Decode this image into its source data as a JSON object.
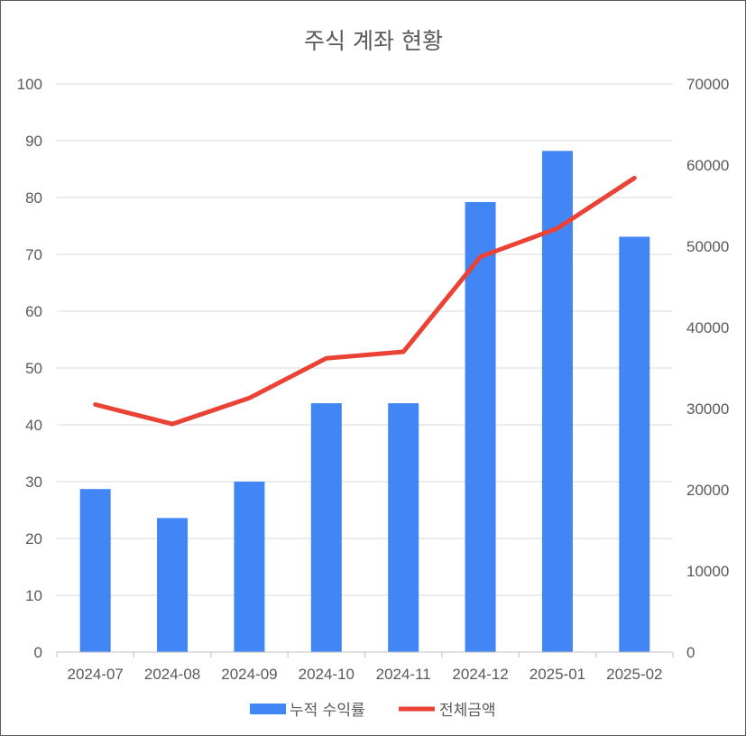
{
  "chart_data": {
    "type": "bar",
    "title": "주식 계좌 현황",
    "categories": [
      "2024-07",
      "2024-08",
      "2024-09",
      "2024-10",
      "2024-11",
      "2024-12",
      "2025-01",
      "2025-02"
    ],
    "series": [
      {
        "name": "누적 수익률",
        "type": "bar",
        "axis": "left",
        "color": "#4285F4",
        "values": [
          28.7,
          23.6,
          30.0,
          43.8,
          43.8,
          79.2,
          88.2,
          73.1
        ]
      },
      {
        "name": "전체금액",
        "type": "line",
        "axis": "right",
        "color": "#EA4335",
        "values": [
          30500,
          28100,
          31300,
          36200,
          37000,
          48700,
          52200,
          58400
        ]
      }
    ],
    "y_left": {
      "min": 0,
      "max": 100,
      "step": 10,
      "ticks": [
        "0",
        "10",
        "20",
        "30",
        "40",
        "50",
        "60",
        "70",
        "80",
        "90",
        "100"
      ]
    },
    "y_right": {
      "min": 0,
      "max": 70000,
      "step": 10000,
      "ticks": [
        "0",
        "10000",
        "20000",
        "30000",
        "40000",
        "50000",
        "60000",
        "70000"
      ]
    },
    "grid": true,
    "legend": "bottom",
    "colors": {
      "gridline": "#d9d9d9",
      "axis": "#bfbfbf",
      "text": "#595959",
      "border": "#595959"
    }
  }
}
